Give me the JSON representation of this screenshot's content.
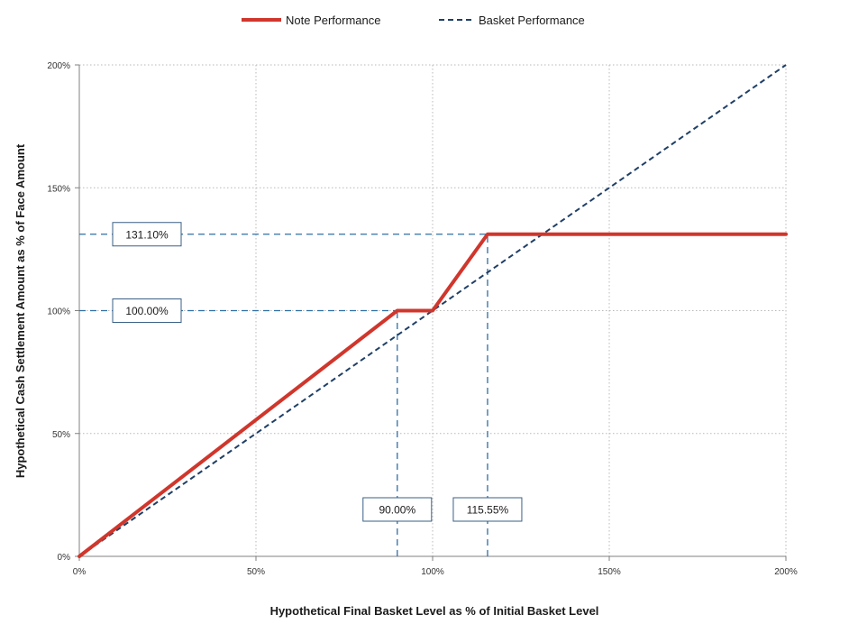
{
  "chart_data": {
    "type": "line",
    "title": "",
    "xlabel": "Hypothetical Final Basket Level as % of Initial Basket Level",
    "ylabel": "Hypothetical Cash Settlement Amount as % of Face Amount",
    "xlim": [
      0,
      200
    ],
    "ylim": [
      0,
      200
    ],
    "x_ticks": [
      0,
      50,
      100,
      150,
      200
    ],
    "x_tick_labels": [
      "0%",
      "50%",
      "100%",
      "150%",
      "200%"
    ],
    "y_ticks": [
      0,
      50,
      100,
      150,
      200
    ],
    "y_tick_labels": [
      "0%",
      "50%",
      "100%",
      "150%",
      "200%"
    ],
    "grid": true,
    "legend_position": "top-center",
    "series": [
      {
        "name": "Note Performance",
        "style": "solid",
        "color": "#d0362c",
        "points": [
          [
            0,
            0
          ],
          [
            90,
            100
          ],
          [
            100,
            100
          ],
          [
            115.55,
            131.1
          ],
          [
            200,
            131.1
          ]
        ]
      },
      {
        "name": "Basket Performance",
        "style": "dashed",
        "color": "#1f3f66",
        "points": [
          [
            0,
            0
          ],
          [
            200,
            200
          ]
        ]
      }
    ],
    "reference_lines": [
      {
        "orientation": "horizontal",
        "y": 131.1,
        "x_from": 0,
        "x_to": 115.55
      },
      {
        "orientation": "horizontal",
        "y": 100,
        "x_from": 0,
        "x_to": 90
      },
      {
        "orientation": "vertical",
        "x": 90,
        "y_from": 0,
        "y_to": 100
      },
      {
        "orientation": "vertical",
        "x": 115.55,
        "y_from": 0,
        "y_to": 131.1
      }
    ],
    "reference_color": "#2f6ea5",
    "callouts": [
      {
        "text": "131.10%",
        "anchor": "y-level",
        "value": 131.1
      },
      {
        "text": "100.00%",
        "anchor": "y-level",
        "value": 100
      },
      {
        "text": "90.00%",
        "anchor": "x-level",
        "value": 90
      },
      {
        "text": "115.55%",
        "anchor": "x-level",
        "value": 115.55
      }
    ],
    "grid_color": "#b8b8b8",
    "axis_color": "#808080"
  }
}
